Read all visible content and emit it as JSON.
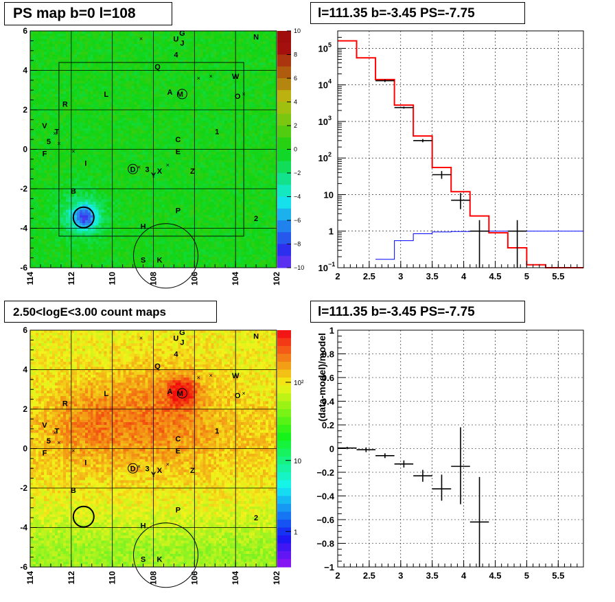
{
  "panels": {
    "tl_title": "PS map b=0 l=108",
    "tr_title": "l=111.35 b=-3.45 PS=-7.75",
    "bl_title": "2.50<logE<3.00 count maps",
    "br_title": "l=111.35 b=-3.45 PS=-7.75"
  },
  "chart_data": [
    {
      "id": "ps-map",
      "type": "heatmap",
      "title": "PS map b=0 l=108",
      "x_ticks": [
        "114",
        "112",
        "110",
        "108",
        "106",
        "104",
        "102"
      ],
      "y_ticks": [
        "6",
        "4",
        "2",
        "0",
        "-2",
        "-4",
        "-6"
      ],
      "xlim": [
        114,
        102
      ],
      "ylim": [
        -6,
        6
      ],
      "grid": true,
      "colorbar": {
        "range": [
          -10,
          10
        ],
        "ticks": [
          "10",
          "8",
          "6",
          "4",
          "2",
          "0",
          "−2",
          "−4",
          "−6",
          "−8",
          "−10"
        ]
      },
      "colors": {
        "background": "#2fd44a",
        "min": "#7a00ff",
        "mid": "#33dd33",
        "max": "#ff0000"
      },
      "source_labels": [
        {
          "text": "N",
          "x": 103.0,
          "y": 5.7
        },
        {
          "text": "U",
          "x": 106.9,
          "y": 5.6
        },
        {
          "text": "G",
          "x": 106.6,
          "y": 5.9
        },
        {
          "text": "J",
          "x": 106.6,
          "y": 5.4
        },
        {
          "text": "4",
          "x": 106.9,
          "y": 4.8
        },
        {
          "text": "Q",
          "x": 107.8,
          "y": 4.2
        },
        {
          "text": "W",
          "x": 104.0,
          "y": 3.7
        },
        {
          "text": "A",
          "x": 107.2,
          "y": 2.9
        },
        {
          "text": "M",
          "x": 106.7,
          "y": 2.8
        },
        {
          "text": "O",
          "x": 103.9,
          "y": 2.7
        },
        {
          "text": "L",
          "x": 110.3,
          "y": 2.8
        },
        {
          "text": "R",
          "x": 112.3,
          "y": 2.3
        },
        {
          "text": "1",
          "x": 104.9,
          "y": 0.9
        },
        {
          "text": "C",
          "x": 106.8,
          "y": 0.5
        },
        {
          "text": "V",
          "x": 113.3,
          "y": 1.2
        },
        {
          "text": "T",
          "x": 112.7,
          "y": 0.9
        },
        {
          "text": "5",
          "x": 113.1,
          "y": 0.4
        },
        {
          "text": "E",
          "x": 106.8,
          "y": -0.1
        },
        {
          "text": "F",
          "x": 113.3,
          "y": -0.2
        },
        {
          "text": "I",
          "x": 111.3,
          "y": -0.7
        },
        {
          "text": "D",
          "x": 109.0,
          "y": -1.0
        },
        {
          "text": "3",
          "x": 108.3,
          "y": -1.0
        },
        {
          "text": "Y",
          "x": 108.0,
          "y": -1.3
        },
        {
          "text": "X",
          "x": 107.7,
          "y": -1.1
        },
        {
          "text": "Z",
          "x": 106.1,
          "y": -1.1
        },
        {
          "text": "B",
          "x": 111.9,
          "y": -2.1
        },
        {
          "text": "P",
          "x": 106.8,
          "y": -3.1
        },
        {
          "text": "2",
          "x": 103.0,
          "y": -3.5
        },
        {
          "text": "H",
          "x": 108.5,
          "y": -3.9
        },
        {
          "text": "S",
          "x": 108.5,
          "y": -5.6
        },
        {
          "text": "K",
          "x": 107.7,
          "y": -5.6
        }
      ]
    },
    {
      "id": "spectrum",
      "type": "line",
      "title": "l=111.35 b=-3.45 PS=-7.75",
      "x_scale": "linear",
      "y_scale": "log",
      "xlim": [
        2,
        5.9
      ],
      "ylim": [
        0.1,
        300000
      ],
      "x_ticks": [
        "2",
        "2.5",
        "3",
        "3.5",
        "4",
        "4.5",
        "5",
        "5.5"
      ],
      "grid": true,
      "series": [
        {
          "color": "#ff0000",
          "style": "step",
          "edges": [
            2.0,
            2.3,
            2.6,
            2.9,
            3.2,
            3.5,
            3.8,
            4.1,
            4.4,
            4.7,
            5.0,
            5.3,
            5.6,
            5.9
          ],
          "values": [
            160000,
            55000,
            14000,
            2800,
            400,
            55,
            12,
            2.6,
            0.9,
            0.35,
            0.12,
            0.1,
            0.1
          ]
        },
        {
          "color": "#0000ff",
          "style": "step",
          "edges": [
            2.6,
            2.9,
            3.2,
            3.5,
            3.8,
            4.1,
            4.4,
            4.7,
            5.0,
            5.3,
            5.6,
            5.9
          ],
          "values": [
            0.17,
            0.55,
            0.85,
            0.95,
            0.98,
            1.0,
            1.0,
            1.0,
            1.0,
            1.0,
            1.0
          ]
        },
        {
          "color": "#000000",
          "style": "points",
          "points": [
            {
              "x": 2.75,
              "y": 13000,
              "xerr": 0.15,
              "ylo": 12000,
              "yhi": 14000
            },
            {
              "x": 3.05,
              "y": 2400,
              "xerr": 0.15,
              "ylo": 2250,
              "yhi": 2550
            },
            {
              "x": 3.35,
              "y": 300,
              "xerr": 0.15,
              "ylo": 270,
              "yhi": 330
            },
            {
              "x": 3.65,
              "y": 35,
              "xerr": 0.15,
              "ylo": 27,
              "yhi": 44
            },
            {
              "x": 3.95,
              "y": 7,
              "xerr": 0.15,
              "ylo": 4,
              "yhi": 11
            },
            {
              "x": 4.25,
              "y": 1,
              "xerr": 0.15,
              "ylo": 0.1,
              "yhi": 2
            },
            {
              "x": 4.85,
              "y": 1,
              "xerr": 0.15,
              "ylo": 0.1,
              "yhi": 2
            }
          ]
        }
      ]
    },
    {
      "id": "count-map",
      "type": "heatmap",
      "title": "2.50<logE<3.00 count maps",
      "x_ticks": [
        "114",
        "112",
        "110",
        "108",
        "106",
        "104",
        "102"
      ],
      "y_ticks": [
        "6",
        "4",
        "2",
        "0",
        "-2",
        "-4",
        "-6"
      ],
      "xlim": [
        114,
        102
      ],
      "ylim": [
        -6,
        6
      ],
      "grid": true,
      "colorbar": {
        "scale": "log",
        "ticks": [
          "10²",
          "10",
          "1"
        ]
      },
      "colors": {
        "low": "#66dd44",
        "mid": "#ffcc22",
        "high": "#ff3300"
      }
    },
    {
      "id": "residuals",
      "type": "scatter",
      "title": "l=111.35 b=-3.45 PS=-7.75",
      "ylabel": "(data-model)/model",
      "xlim": [
        2,
        5.9
      ],
      "ylim": [
        -1,
        1
      ],
      "x_ticks": [
        "2",
        "2.5",
        "3",
        "3.5",
        "4",
        "4.5",
        "5",
        "5.5"
      ],
      "y_ticks": [
        "1",
        "0.8",
        "0.6",
        "0.4",
        "0.2",
        "0",
        "−0.2",
        "−0.4",
        "−0.6",
        "−0.8",
        "−1"
      ],
      "grid": true,
      "points": [
        {
          "x": 2.15,
          "y": 0.005,
          "xerr": 0.15,
          "ylo": -0.005,
          "yhi": 0.015
        },
        {
          "x": 2.45,
          "y": -0.01,
          "xerr": 0.15,
          "ylo": -0.03,
          "yhi": 0.01
        },
        {
          "x": 2.75,
          "y": -0.06,
          "xerr": 0.15,
          "ylo": -0.08,
          "yhi": -0.04
        },
        {
          "x": 3.05,
          "y": -0.13,
          "xerr": 0.15,
          "ylo": -0.16,
          "yhi": -0.1
        },
        {
          "x": 3.35,
          "y": -0.23,
          "xerr": 0.15,
          "ylo": -0.28,
          "yhi": -0.18
        },
        {
          "x": 3.65,
          "y": -0.34,
          "xerr": 0.15,
          "ylo": -0.44,
          "yhi": -0.22
        },
        {
          "x": 3.95,
          "y": -0.15,
          "xerr": 0.15,
          "ylo": -0.47,
          "yhi": 0.18
        },
        {
          "x": 4.25,
          "y": -0.62,
          "xerr": 0.15,
          "ylo": -1.0,
          "yhi": -0.24
        }
      ]
    }
  ]
}
